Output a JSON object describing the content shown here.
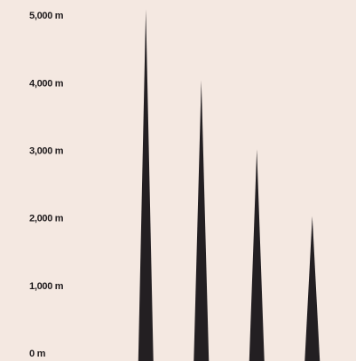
{
  "chart_data": {
    "type": "spike",
    "categories": [
      null,
      null,
      null,
      null
    ],
    "values": [
      5100,
      4050,
      3030,
      2040
    ],
    "color": "#231f22",
    "ylim": [
      0,
      5200
    ],
    "yticks": [
      {
        "value": 0,
        "label": "0 m"
      },
      {
        "value": 1000,
        "label": "1,000 m"
      },
      {
        "value": 2000,
        "label": "2,000 m"
      },
      {
        "value": 3000,
        "label": "3,000 m"
      },
      {
        "value": 4000,
        "label": "4,000 m"
      },
      {
        "value": 5000,
        "label": "5,000 m"
      }
    ],
    "grid": false
  }
}
